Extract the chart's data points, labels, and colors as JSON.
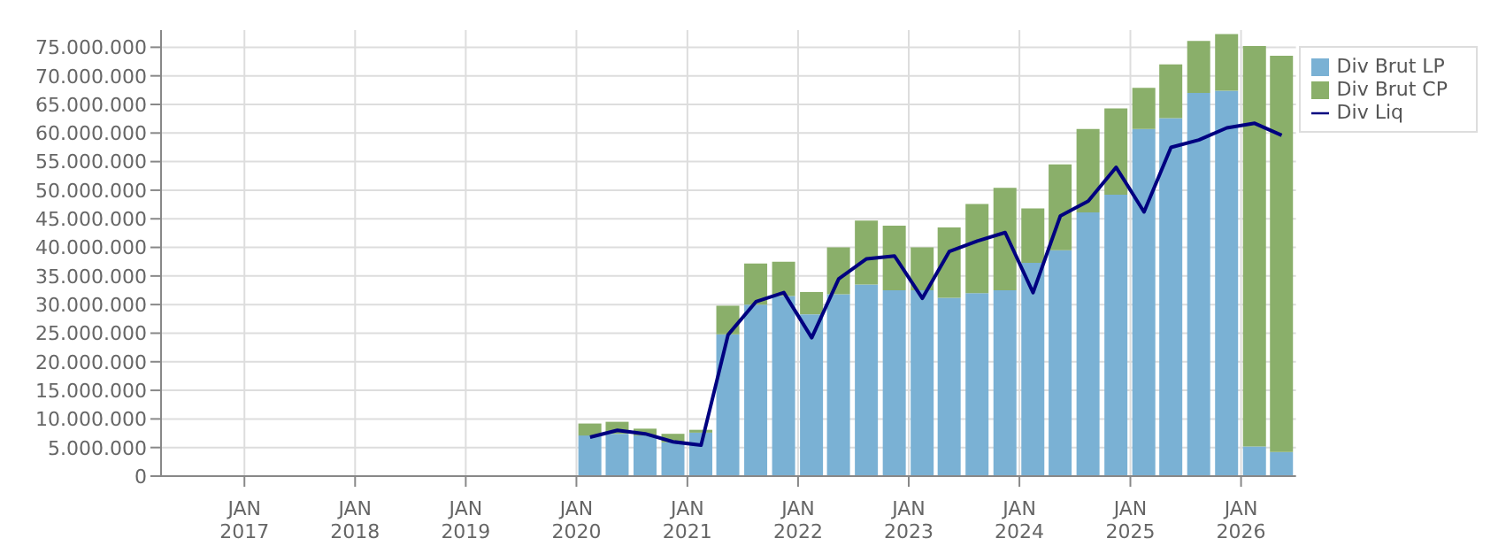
{
  "chart_data": {
    "type": "bar",
    "stacked": true,
    "x": [
      "2020-02-15",
      "2020-05-15",
      "2020-08-15",
      "2020-11-15",
      "2021-02-15",
      "2021-05-15",
      "2021-08-15",
      "2021-11-15",
      "2022-02-15",
      "2022-05-15",
      "2022-08-15",
      "2022-11-15",
      "2023-02-15",
      "2023-05-15",
      "2023-08-15",
      "2023-11-15",
      "2024-02-15",
      "2024-05-15",
      "2024-08-15",
      "2024-11-15",
      "2025-02-15",
      "2025-05-15",
      "2025-08-15",
      "2025-11-15",
      "2026-02-15",
      "2026-05-15"
    ],
    "series": [
      {
        "name": "Div Brut LP",
        "color": "#7ab1d4",
        "values": [
          7100000,
          7400000,
          7100000,
          5900000,
          7600000,
          24800000,
          30000000,
          31500000,
          28300000,
          31800000,
          33500000,
          32500000,
          32500000,
          31200000,
          32000000,
          32500000,
          37300000,
          39500000,
          46100000,
          49200000,
          60700000,
          62600000,
          67000000,
          67400000,
          5200000,
          4200000
        ]
      },
      {
        "name": "Div Brut CP",
        "color": "#8aaf6a",
        "values": [
          2100000,
          2100000,
          1200000,
          1500000,
          500000,
          5000000,
          7200000,
          6000000,
          3900000,
          8200000,
          11200000,
          11300000,
          7500000,
          12300000,
          15600000,
          17900000,
          9500000,
          15000000,
          14600000,
          15100000,
          7200000,
          9400000,
          9100000,
          9900000,
          70000000,
          69300000
        ]
      },
      {
        "name": "Div Liq",
        "type": "line",
        "color": "#000080",
        "values": [
          6800000,
          8000000,
          7400000,
          6000000,
          5400000,
          24700000,
          30500000,
          32100000,
          24200000,
          34500000,
          38000000,
          38500000,
          31100000,
          39300000,
          41100000,
          42600000,
          32100000,
          45500000,
          48100000,
          54000000,
          46200000,
          57500000,
          58800000,
          60900000,
          61700000,
          59600000
        ]
      }
    ],
    "xlim": [
      "2016-04-01",
      "2026-07-01"
    ],
    "xticks": [
      {
        "value": "2017-01-01",
        "label": "JAN\n2017"
      },
      {
        "value": "2018-01-01",
        "label": "JAN\n2018"
      },
      {
        "value": "2019-01-01",
        "label": "JAN\n2019"
      },
      {
        "value": "2020-01-01",
        "label": "JAN\n2020"
      },
      {
        "value": "2021-01-01",
        "label": "JAN\n2021"
      },
      {
        "value": "2022-01-01",
        "label": "JAN\n2022"
      },
      {
        "value": "2023-01-01",
        "label": "JAN\n2023"
      },
      {
        "value": "2024-01-01",
        "label": "JAN\n2024"
      },
      {
        "value": "2025-01-01",
        "label": "JAN\n2025"
      },
      {
        "value": "2026-01-01",
        "label": "JAN\n2026"
      }
    ],
    "ylim": [
      0,
      78000000
    ],
    "yticks": [
      {
        "value": 0,
        "label": "0"
      },
      {
        "value": 5000000,
        "label": "5.000.000"
      },
      {
        "value": 10000000,
        "label": "10.000.000"
      },
      {
        "value": 15000000,
        "label": "15.000.000"
      },
      {
        "value": 20000000,
        "label": "20.000.000"
      },
      {
        "value": 25000000,
        "label": "25.000.000"
      },
      {
        "value": 30000000,
        "label": "30.000.000"
      },
      {
        "value": 35000000,
        "label": "35.000.000"
      },
      {
        "value": 40000000,
        "label": "40.000.000"
      },
      {
        "value": 45000000,
        "label": "45.000.000"
      },
      {
        "value": 50000000,
        "label": "50.000.000"
      },
      {
        "value": 55000000,
        "label": "55.000.000"
      },
      {
        "value": 60000000,
        "label": "60.000.000"
      },
      {
        "value": 65000000,
        "label": "65.000.000"
      },
      {
        "value": 70000000,
        "label": "70.000.000"
      },
      {
        "value": 75000000,
        "label": "75.000.000"
      }
    ],
    "grid": true,
    "legend": "top right",
    "marker": "none",
    "line_style": "solid"
  }
}
